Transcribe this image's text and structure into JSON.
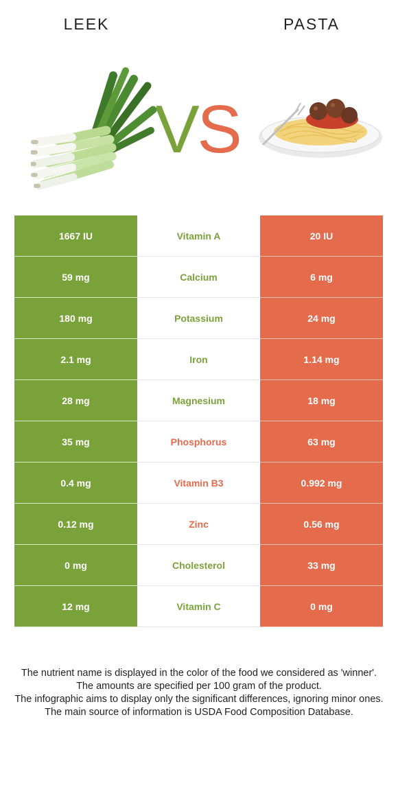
{
  "header": {
    "left_food": "LEEK",
    "right_food": "PASTA",
    "vs_left": "V",
    "vs_right": "S"
  },
  "colors": {
    "leek": "#7aa23a",
    "pasta": "#e46b4b"
  },
  "rows": [
    {
      "left": "1667 IU",
      "nutrient": "Vitamin A",
      "right": "20 IU",
      "winner": "leek"
    },
    {
      "left": "59 mg",
      "nutrient": "Calcium",
      "right": "6 mg",
      "winner": "leek"
    },
    {
      "left": "180 mg",
      "nutrient": "Potassium",
      "right": "24 mg",
      "winner": "leek"
    },
    {
      "left": "2.1 mg",
      "nutrient": "Iron",
      "right": "1.14 mg",
      "winner": "leek"
    },
    {
      "left": "28 mg",
      "nutrient": "Magnesium",
      "right": "18 mg",
      "winner": "leek"
    },
    {
      "left": "35 mg",
      "nutrient": "Phosphorus",
      "right": "63 mg",
      "winner": "pasta"
    },
    {
      "left": "0.4 mg",
      "nutrient": "Vitamin B3",
      "right": "0.992 mg",
      "winner": "pasta"
    },
    {
      "left": "0.12 mg",
      "nutrient": "Zinc",
      "right": "0.56 mg",
      "winner": "pasta"
    },
    {
      "left": "0 mg",
      "nutrient": "Cholesterol",
      "right": "33 mg",
      "winner": "leek"
    },
    {
      "left": "12 mg",
      "nutrient": "Vitamin C",
      "right": "0 mg",
      "winner": "leek"
    }
  ],
  "footnotes": [
    "The nutrient name is displayed in the color of the food we considered as 'winner'.",
    "The amounts are specified per 100 gram of the product.",
    "The infographic aims to display only the significant differences, ignoring minor ones.",
    "The main source of information is USDA Food Composition Database."
  ]
}
